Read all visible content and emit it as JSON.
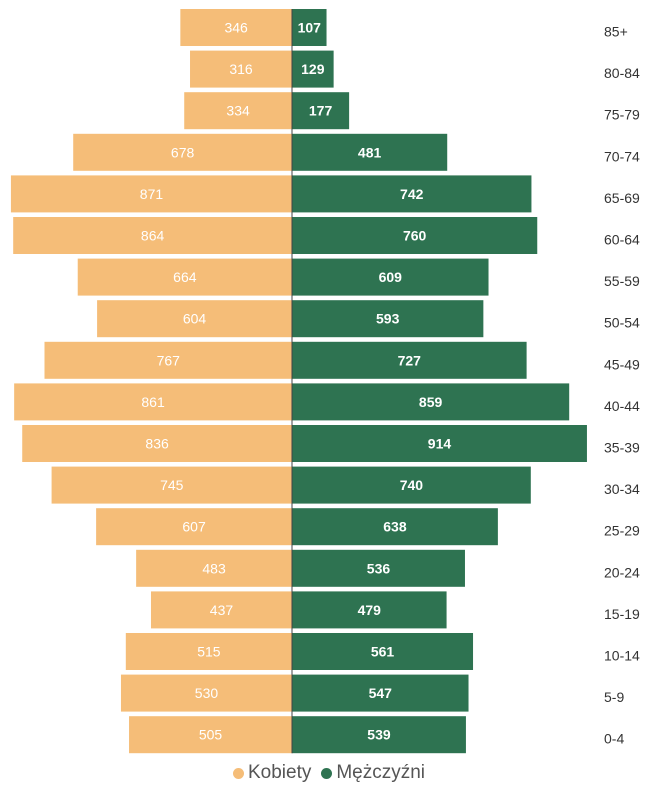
{
  "chart_data": {
    "type": "bar",
    "orientation": "horizontal",
    "subtype": "population-pyramid",
    "categories": [
      "85+",
      "80-84",
      "75-79",
      "70-74",
      "65-69",
      "60-64",
      "55-59",
      "50-54",
      "45-49",
      "40-44",
      "35-39",
      "30-34",
      "25-29",
      "20-24",
      "15-19",
      "10-14",
      "5-9",
      "0-4"
    ],
    "series": [
      {
        "name": "Kobiety",
        "color": "#f5bd78",
        "values": [
          346,
          316,
          334,
          678,
          871,
          864,
          664,
          604,
          767,
          861,
          836,
          745,
          607,
          483,
          437,
          515,
          530,
          505
        ]
      },
      {
        "name": "Mężczyźni",
        "color": "#2e7351",
        "values": [
          107,
          129,
          177,
          481,
          742,
          760,
          609,
          593,
          727,
          859,
          914,
          740,
          638,
          536,
          479,
          561,
          547,
          539
        ]
      }
    ],
    "xlim": [
      0,
      914
    ],
    "legend": "bottom-center",
    "grid": false
  }
}
